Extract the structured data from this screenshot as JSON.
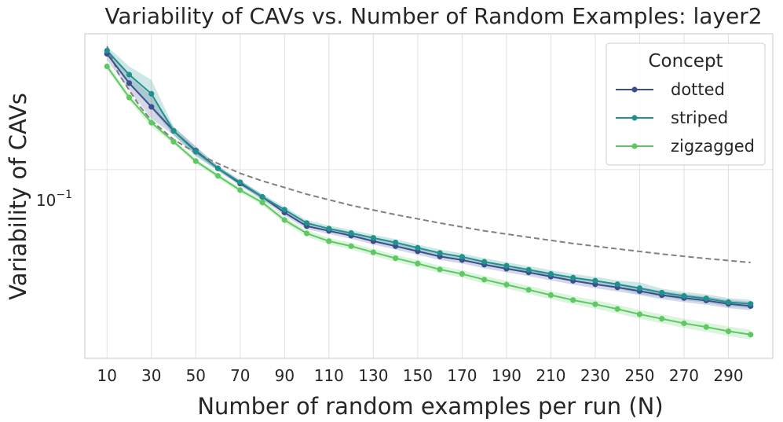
{
  "chart_data": {
    "type": "line",
    "title": "Variability of CAVs vs. Number of Random Examples: layer2",
    "xlabel": "Number of random examples per run (N)",
    "ylabel": "Variability of CAVs",
    "x_ticks": [
      10,
      30,
      50,
      70,
      90,
      110,
      130,
      150,
      170,
      190,
      210,
      230,
      250,
      270,
      290
    ],
    "y_tick_label": {
      "base": "10",
      "exp": "−1",
      "value": 0.1
    },
    "xlim": [
      0,
      310
    ],
    "ylim": [
      0.0465,
      0.1735
    ],
    "yscale": "log",
    "grid": true,
    "legend": {
      "title": "Concept",
      "position": "top-right"
    },
    "x": [
      10,
      20,
      30,
      40,
      50,
      60,
      70,
      80,
      90,
      100,
      110,
      120,
      130,
      140,
      150,
      160,
      170,
      180,
      190,
      200,
      210,
      220,
      230,
      240,
      250,
      260,
      270,
      280,
      290,
      300
    ],
    "series": [
      {
        "name": "dotted",
        "color": "#3b4f8e",
        "values": [
          0.16,
          0.142,
          0.129,
          0.117,
          0.108,
          0.1005,
          0.0945,
          0.0895,
          0.084,
          0.0795,
          0.078,
          0.0765,
          0.0748,
          0.0733,
          0.0718,
          0.0703,
          0.0693,
          0.068,
          0.0669,
          0.0659,
          0.0648,
          0.0637,
          0.0628,
          0.062,
          0.0611,
          0.0601,
          0.0594,
          0.0588,
          0.058,
          0.0575
        ],
        "band": [
          0.004,
          0.004,
          0.006,
          0.002,
          0.002,
          0.001,
          0.001,
          0.001,
          0.001,
          0.001,
          0.001,
          0.001,
          0.001,
          0.001,
          0.001,
          0.001,
          0.001,
          0.001,
          0.001,
          0.001,
          0.001,
          0.001,
          0.001,
          0.001,
          0.001,
          0.001,
          0.001,
          0.001,
          0.001,
          0.001
        ]
      },
      {
        "name": "striped",
        "color": "#21918c",
        "values": [
          0.162,
          0.147,
          0.136,
          0.117,
          0.1075,
          0.1005,
          0.095,
          0.0895,
          0.085,
          0.0805,
          0.0787,
          0.0773,
          0.0758,
          0.0744,
          0.0728,
          0.0713,
          0.0702,
          0.0688,
          0.0677,
          0.0666,
          0.0655,
          0.0645,
          0.0637,
          0.0628,
          0.0618,
          0.0607,
          0.0599,
          0.0593,
          0.0584,
          0.058
        ],
        "band": [
          0.003,
          0.005,
          0.008,
          0.002,
          0.002,
          0.001,
          0.001,
          0.001,
          0.001,
          0.001,
          0.001,
          0.001,
          0.001,
          0.001,
          0.001,
          0.001,
          0.001,
          0.001,
          0.001,
          0.001,
          0.001,
          0.001,
          0.001,
          0.001,
          0.0015,
          0.001,
          0.001,
          0.001,
          0.001,
          0.001
        ]
      },
      {
        "name": "zigzagged",
        "color": "#5ec962",
        "values": [
          0.152,
          0.134,
          0.121,
          0.112,
          0.1035,
          0.0975,
          0.092,
          0.0875,
          0.0815,
          0.0772,
          0.0748,
          0.0733,
          0.0715,
          0.0698,
          0.0683,
          0.0667,
          0.0655,
          0.064,
          0.0627,
          0.0614,
          0.0601,
          0.0589,
          0.0579,
          0.0568,
          0.0556,
          0.0546,
          0.0536,
          0.0528,
          0.0519,
          0.0512
        ],
        "band": [
          0.002,
          0.002,
          0.002,
          0.001,
          0.001,
          0.001,
          0.001,
          0.001,
          0.001,
          0.001,
          0.001,
          0.001,
          0.001,
          0.001,
          0.001,
          0.001,
          0.001,
          0.001,
          0.001,
          0.001,
          0.001,
          0.001,
          0.001,
          0.001,
          0.001,
          0.001,
          0.001,
          0.001,
          0.001,
          0.001
        ]
      }
    ],
    "reference_curve": {
      "style": "dashed",
      "color": "#808080",
      "x": [
        10,
        15,
        20,
        25,
        30,
        40,
        50,
        60,
        70,
        80,
        90,
        100,
        120,
        140,
        160,
        180,
        200,
        220,
        240,
        260,
        280,
        300
      ],
      "values": [
        0.165,
        0.148,
        0.138,
        0.129,
        0.122,
        0.113,
        0.107,
        0.1025,
        0.0985,
        0.0955,
        0.093,
        0.0905,
        0.0865,
        0.0833,
        0.0805,
        0.078,
        0.076,
        0.0741,
        0.0725,
        0.071,
        0.0697,
        0.0686
      ]
    }
  }
}
